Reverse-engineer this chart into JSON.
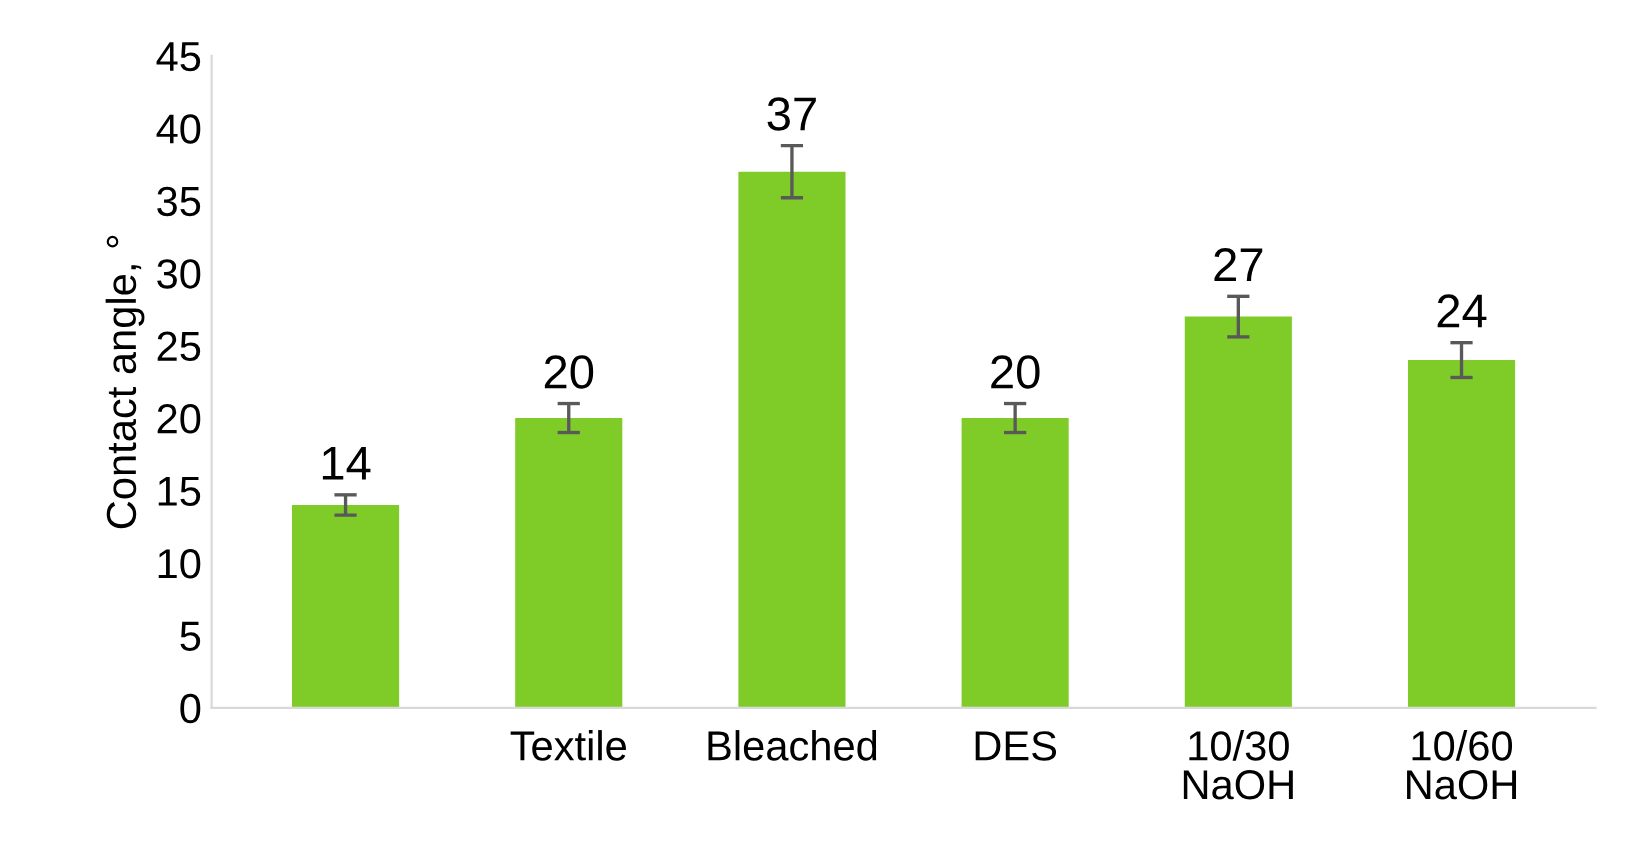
{
  "chart_data": {
    "type": "bar",
    "ylabel": "Contact angle, °",
    "categories": [
      null,
      "Textile",
      "Bleached",
      "DES",
      "10/30\nNaOH",
      "10/60\nNaOH"
    ],
    "values": [
      14,
      20,
      37,
      20,
      27,
      24
    ],
    "errors": [
      0.7,
      1,
      1.8,
      1,
      1.4,
      1.2
    ],
    "color": "#7fcc28",
    "ylim": [
      0,
      45
    ],
    "yticks": [
      0,
      5,
      10,
      15,
      20,
      25,
      30,
      35,
      40,
      45
    ],
    "data_labels": true
  }
}
